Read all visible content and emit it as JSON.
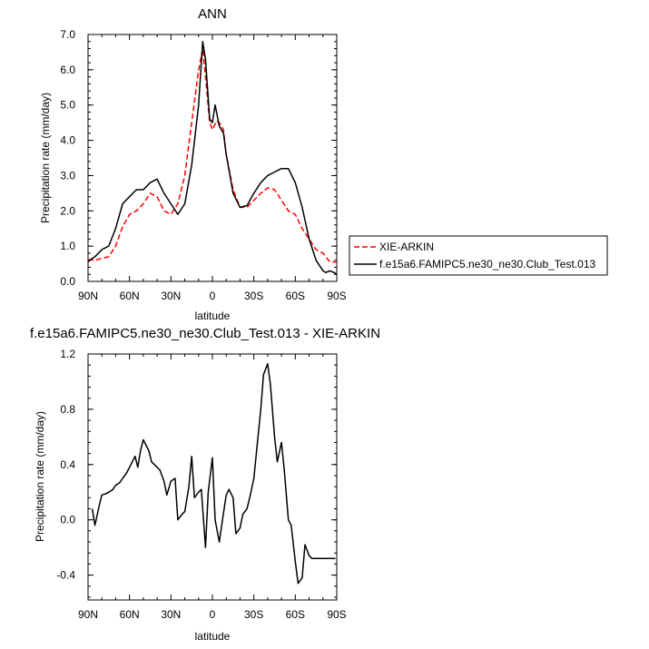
{
  "chart_data": [
    {
      "type": "line",
      "title": "ANN",
      "xlabel": "latitude",
      "ylabel": "Precipitation rate (mm/day)",
      "x_ticks": [
        "90N",
        "60N",
        "30N",
        "0",
        "30S",
        "60S",
        "90S"
      ],
      "x_tick_values": [
        90,
        60,
        30,
        0,
        -30,
        -60,
        -90
      ],
      "y_ticks": [
        "0.0",
        "1.0",
        "2.0",
        "3.0",
        "4.0",
        "5.0",
        "6.0",
        "7.0"
      ],
      "xlim": [
        90,
        -90
      ],
      "ylim": [
        0,
        7
      ],
      "legend_placement": "right",
      "series": [
        {
          "name": "XIE-ARKIN",
          "color": "#ff0000",
          "style": "dashed",
          "x": [
            90,
            85,
            80,
            75,
            70,
            65,
            60,
            55,
            50,
            45,
            40,
            35,
            30,
            25,
            20,
            15,
            10,
            7,
            5,
            2,
            0,
            -3,
            -5,
            -8,
            -10,
            -15,
            -20,
            -25,
            -30,
            -35,
            -40,
            -45,
            -50,
            -55,
            -60,
            -65,
            -70,
            -75,
            -80,
            -85,
            -90
          ],
          "values": [
            0.62,
            0.6,
            0.65,
            0.7,
            1.0,
            1.55,
            1.9,
            2.0,
            2.2,
            2.5,
            2.4,
            2.0,
            1.9,
            2.2,
            3.0,
            4.5,
            6.0,
            6.6,
            5.8,
            4.5,
            4.3,
            4.55,
            4.5,
            4.3,
            3.6,
            2.6,
            2.1,
            2.1,
            2.3,
            2.5,
            2.65,
            2.6,
            2.3,
            2.0,
            1.9,
            1.5,
            1.2,
            0.9,
            0.8,
            0.55,
            0.55
          ]
        },
        {
          "name": "f.e15a6.FAMIPC5.ne30_ne30.Club_Test.013",
          "color": "#000000",
          "style": "solid",
          "x": [
            90,
            87,
            85,
            80,
            75,
            70,
            65,
            60,
            55,
            50,
            45,
            40,
            35,
            30,
            25,
            20,
            15,
            10,
            7,
            5,
            2,
            0,
            -2,
            -5,
            -8,
            -10,
            -15,
            -20,
            -25,
            -30,
            -35,
            -40,
            -45,
            -50,
            -55,
            -60,
            -65,
            -70,
            -75,
            -80,
            -82,
            -85,
            -88,
            -90
          ],
          "values": [
            0.55,
            0.65,
            0.7,
            0.9,
            1.0,
            1.5,
            2.2,
            2.4,
            2.6,
            2.6,
            2.8,
            2.9,
            2.5,
            2.2,
            1.9,
            2.2,
            3.3,
            5.0,
            6.8,
            6.3,
            4.6,
            4.5,
            5.0,
            4.4,
            4.2,
            3.6,
            2.5,
            2.1,
            2.15,
            2.5,
            2.8,
            3.0,
            3.1,
            3.2,
            3.2,
            2.8,
            2.1,
            1.2,
            0.6,
            0.3,
            0.25,
            0.3,
            0.25,
            0.2
          ]
        }
      ]
    },
    {
      "type": "line",
      "title": "f.e15a6.FAMIPC5.ne30_ne30.Club_Test.013 - XIE-ARKIN",
      "xlabel": "latitude",
      "ylabel": "Precipitation rate (mm/day)",
      "x_ticks": [
        "90N",
        "60N",
        "30N",
        "0",
        "30S",
        "60S",
        "90S"
      ],
      "x_tick_values": [
        90,
        60,
        30,
        0,
        -30,
        -60,
        -90
      ],
      "y_ticks": [
        "-0.4",
        "0.0",
        "0.4",
        "0.8",
        "1.2"
      ],
      "y_tick_values": [
        -0.4,
        0.0,
        0.4,
        0.8,
        1.2
      ],
      "xlim": [
        90,
        -90
      ],
      "ylim": [
        -0.58,
        1.2
      ],
      "series": [
        {
          "color": "#000000",
          "style": "solid",
          "x": [
            87,
            85,
            82,
            80,
            77,
            75,
            72,
            70,
            67,
            65,
            62,
            60,
            58,
            56,
            54,
            52,
            50,
            48,
            46,
            44,
            42,
            40,
            38,
            35,
            33,
            30,
            27,
            25,
            22,
            20,
            17,
            15,
            13,
            10,
            8,
            5,
            3,
            0,
            -2,
            -5,
            -7,
            -10,
            -12,
            -15,
            -17,
            -20,
            -22,
            -25,
            -27,
            -30,
            -32,
            -35,
            -37,
            -40,
            -42,
            -45,
            -47,
            -50,
            -52,
            -55,
            -57,
            -60,
            -62,
            -65,
            -67,
            -70,
            -72,
            -75,
            -77,
            -80,
            -82,
            -85,
            -87,
            -89
          ],
          "values": [
            0.08,
            -0.04,
            0.1,
            0.18,
            0.19,
            0.2,
            0.22,
            0.25,
            0.27,
            0.3,
            0.34,
            0.38,
            0.42,
            0.46,
            0.38,
            0.5,
            0.58,
            0.54,
            0.5,
            0.42,
            0.4,
            0.38,
            0.36,
            0.28,
            0.18,
            0.28,
            0.3,
            0.0,
            0.04,
            0.06,
            0.24,
            0.46,
            0.16,
            0.2,
            0.22,
            -0.2,
            0.2,
            0.45,
            0.0,
            -0.16,
            -0.02,
            0.18,
            0.22,
            0.16,
            -0.1,
            -0.06,
            0.04,
            0.08,
            0.16,
            0.3,
            0.5,
            0.8,
            1.05,
            1.13,
            0.98,
            0.6,
            0.42,
            0.56,
            0.36,
            0.0,
            -0.04,
            -0.3,
            -0.46,
            -0.42,
            -0.18,
            -0.26,
            -0.28,
            -0.28,
            -0.28,
            -0.28,
            -0.28,
            -0.28,
            -0.28,
            -0.28
          ]
        }
      ]
    }
  ]
}
